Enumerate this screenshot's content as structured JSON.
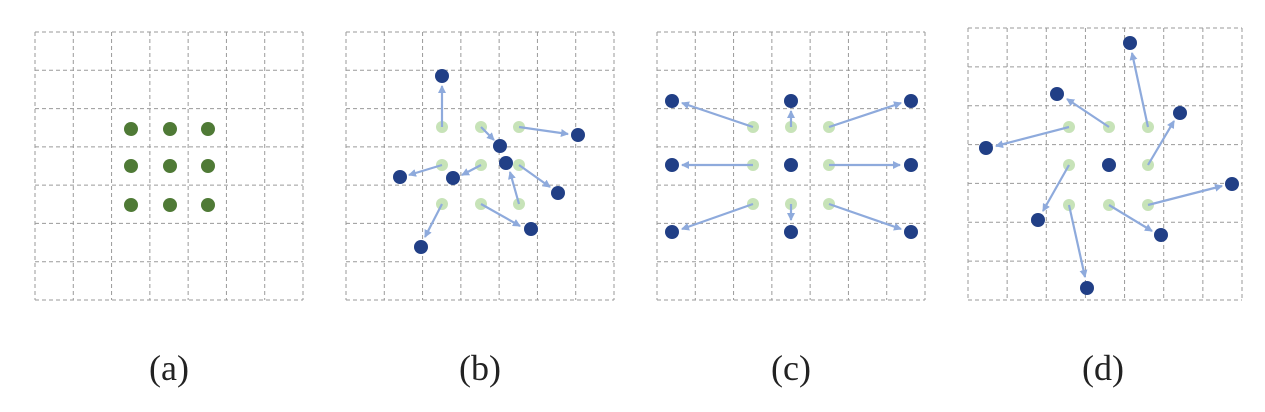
{
  "colors": {
    "grid": "#9a9a9a",
    "sample_green": "#4f7a36",
    "sample_light": "#c7e3b8",
    "sample_blue": "#213f86",
    "arrow": "#8eaadc"
  },
  "panels": [
    {
      "caption": "(a)"
    },
    {
      "caption": "(b)"
    },
    {
      "caption": "(c)"
    },
    {
      "caption": "(d)"
    }
  ]
}
